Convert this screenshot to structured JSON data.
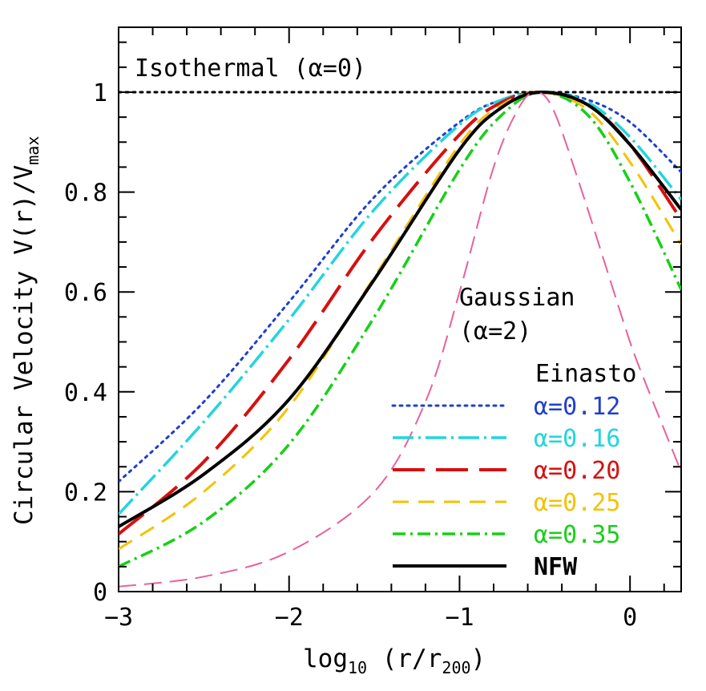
{
  "chart_data": {
    "type": "line",
    "ylabel_prefix": "Circular Velocity",
    "ylabel_main": "V(r)/V",
    "ylabel_sub": "max",
    "xlabel_main": "log",
    "xlabel_sub": "10",
    "xlabel_mid": " (r/r",
    "xlabel_sub2": "200",
    "xlabel_end": ")",
    "xlim": [
      -3,
      0.3
    ],
    "ylim": [
      0,
      1.13
    ],
    "xticks": [
      -3,
      -2,
      -1,
      0
    ],
    "xtick_labels": [
      "−3",
      "−2",
      "−1",
      "0"
    ],
    "yticks": [
      0,
      0.2,
      0.4,
      0.6,
      0.8,
      1
    ],
    "ytick_labels": [
      "0",
      "0.2",
      "0.4",
      "0.6",
      "0.8",
      "1"
    ],
    "annotations": {
      "isothermal": "Isothermal (α=0)",
      "gaussian_line1": "Gaussian",
      "gaussian_line2": "(α=2)",
      "legend_title": "Einasto"
    },
    "colors": {
      "isothermal": "#000000",
      "gaussian": "#e8609f",
      "a012": "#1f3fd0",
      "a016": "#22d5dd",
      "a020": "#d80f0f",
      "a025": "#f2c300",
      "a035": "#16d016",
      "nfw": "#000000"
    },
    "series": [
      {
        "key": "a012",
        "name": "α=0.12",
        "style": "dotted",
        "x": [
          -3.0,
          -2.5,
          -2.0,
          -1.5,
          -1.0,
          -0.75,
          -0.52,
          -0.25,
          0.0,
          0.3
        ],
        "y": [
          0.22,
          0.38,
          0.58,
          0.79,
          0.94,
          0.985,
          1.0,
          0.985,
          0.94,
          0.84
        ]
      },
      {
        "key": "a016",
        "name": "α=0.16",
        "style": "dashdot",
        "x": [
          -3.0,
          -2.5,
          -2.0,
          -1.5,
          -1.0,
          -0.75,
          -0.52,
          -0.25,
          0.0,
          0.3
        ],
        "y": [
          0.155,
          0.34,
          0.545,
          0.765,
          0.935,
          0.985,
          1.0,
          0.98,
          0.91,
          0.785
        ]
      },
      {
        "key": "a020",
        "name": "α=0.20",
        "style": "longdash",
        "x": [
          -3.0,
          -2.5,
          -2.0,
          -1.5,
          -1.0,
          -0.75,
          -0.52,
          -0.25,
          0.0,
          0.3
        ],
        "y": [
          0.115,
          0.26,
          0.465,
          0.71,
          0.915,
          0.98,
          1.0,
          0.975,
          0.895,
          0.745
        ]
      },
      {
        "key": "a025",
        "name": "α=0.25",
        "style": "dashed",
        "x": [
          -3.0,
          -2.5,
          -2.0,
          -1.5,
          -1.0,
          -0.75,
          -0.52,
          -0.25,
          0.0,
          0.3
        ],
        "y": [
          0.085,
          0.2,
          0.37,
          0.63,
          0.895,
          0.975,
          1.0,
          0.965,
          0.86,
          0.695
        ]
      },
      {
        "key": "a035",
        "name": "α=0.35",
        "style": "dashdot2",
        "x": [
          -3.0,
          -2.5,
          -2.0,
          -1.5,
          -1.0,
          -0.75,
          -0.52,
          -0.25,
          0.0,
          0.3
        ],
        "y": [
          0.05,
          0.14,
          0.295,
          0.55,
          0.845,
          0.955,
          1.0,
          0.955,
          0.82,
          0.605
        ]
      },
      {
        "key": "nfw",
        "name": "NFW",
        "style": "solid",
        "x": [
          -3.0,
          -2.5,
          -2.0,
          -1.5,
          -1.0,
          -0.75,
          -0.52,
          -0.25,
          0.0,
          0.3
        ],
        "y": [
          0.13,
          0.235,
          0.385,
          0.625,
          0.885,
          0.97,
          1.0,
          0.975,
          0.895,
          0.765
        ]
      },
      {
        "key": "gaussian",
        "name": "Gaussian (α=2)",
        "style": "gauss",
        "x": [
          -3.0,
          -2.5,
          -2.0,
          -1.5,
          -1.2,
          -1.0,
          -0.8,
          -0.65,
          -0.55,
          -0.45,
          -0.3,
          -0.15,
          0.0,
          0.1,
          0.3
        ],
        "y": [
          0.01,
          0.03,
          0.08,
          0.2,
          0.38,
          0.6,
          0.85,
          0.97,
          1.0,
          0.965,
          0.82,
          0.66,
          0.5,
          0.41,
          0.24
        ]
      },
      {
        "key": "isothermal",
        "name": "Isothermal (α=0)",
        "style": "isodot",
        "x": [
          -3.0,
          0.3
        ],
        "y": [
          1.0,
          1.0
        ]
      }
    ]
  }
}
